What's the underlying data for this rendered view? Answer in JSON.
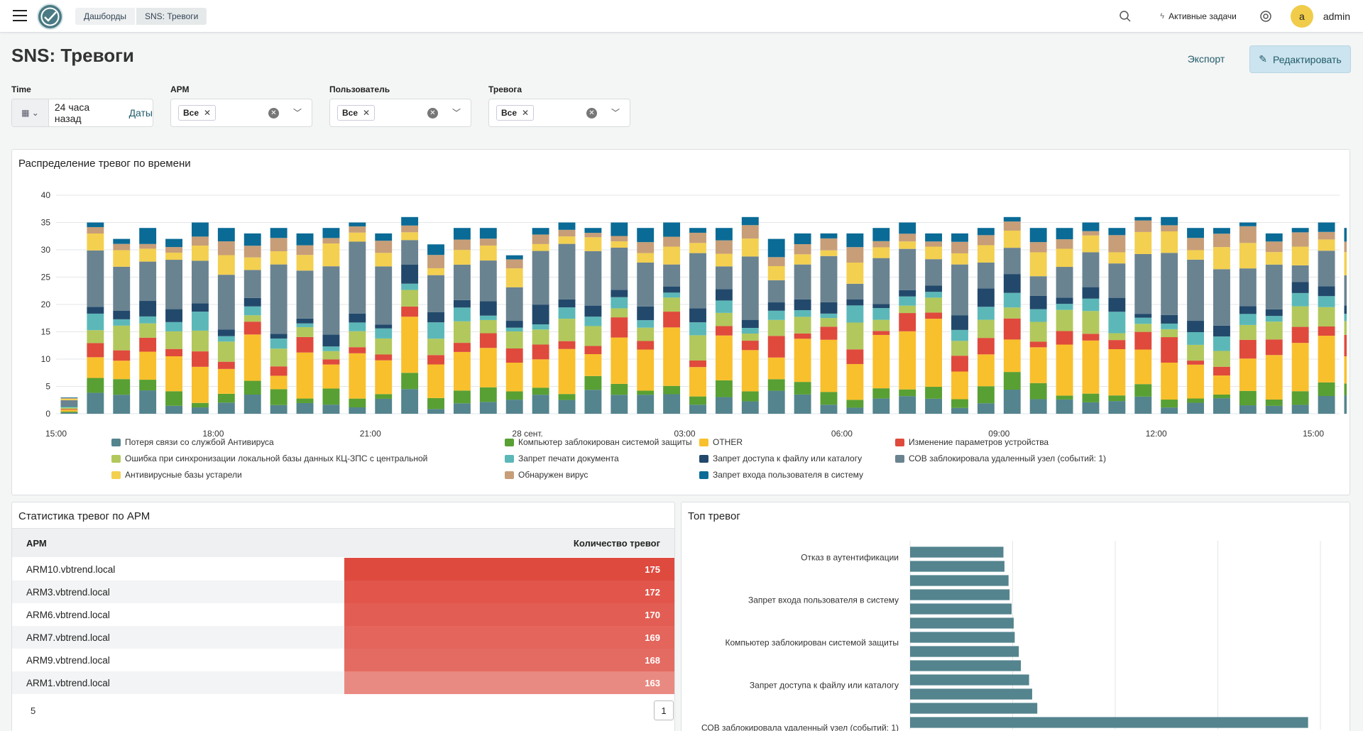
{
  "nav": {
    "breadcrumbs": [
      "Дашборды",
      "SNS: Тревоги"
    ],
    "tasks_label": "Активные задачи",
    "avatar_letter": "a",
    "username": "admin"
  },
  "page": {
    "title": "SNS: Тревоги",
    "export_label": "Экспорт",
    "edit_label": "Редактировать"
  },
  "filters": {
    "time": {
      "label": "Time",
      "value": "24 часа назад",
      "link": "Даты"
    },
    "arm": {
      "label": "АРМ",
      "chip": "Все"
    },
    "user": {
      "label": "Пользователь",
      "chip": "Все"
    },
    "alarm": {
      "label": "Тревога",
      "chip": "Все"
    }
  },
  "timeline_panel": {
    "title": "Распределение тревог по времени",
    "chart_data": {
      "type": "bar",
      "stacked": true,
      "y_ticks": [
        "0",
        "5",
        "10",
        "15",
        "20",
        "25",
        "30",
        "35",
        "40"
      ],
      "ylim": [
        0,
        40
      ],
      "x_tick_labels": [
        "15:00",
        "18:00",
        "21:00",
        "28 сент.",
        "03:00",
        "06:00",
        "09:00",
        "12:00",
        "15:00"
      ],
      "x_tick_hours": [
        0,
        3,
        6,
        9,
        12,
        15,
        18,
        21,
        24
      ],
      "bucket_hours": 0.5,
      "grid": true,
      "legend_position": "bottom",
      "series": [
        {
          "name": "Потеря связи со службой  Антивируса",
          "color": "#54848e"
        },
        {
          "name": "Компьютер заблокирован системой защиты",
          "color": "#58a033"
        },
        {
          "name": "OTHER",
          "color": "#f9c02d"
        },
        {
          "name": "Изменение параметров устройства",
          "color": "#df4a3c"
        },
        {
          "name": "Ошибка при синхронизации локальной базы данных КЦ-ЗПС с центральной",
          "color": "#b2c85c"
        },
        {
          "name": "Запрет печати документа",
          "color": "#5cb8b8"
        },
        {
          "name": "Запрет доступа к файлу или каталогу",
          "color": "#22496b"
        },
        {
          "name": "СОВ заблокировала удаленный узел (событий: 1)",
          "color": "#6a8391"
        },
        {
          "name": "Антивирусные базы устарели",
          "color": "#f3d050"
        },
        {
          "name": "Обнаружен вирус",
          "color": "#c79e78"
        },
        {
          "name": "Запрет входа пользователя в систему",
          "color": "#0a6b96"
        }
      ],
      "totals": [
        3,
        35,
        32,
        34,
        32,
        35,
        34,
        33,
        34,
        33,
        34,
        35,
        33,
        36,
        31,
        34,
        34,
        29,
        34,
        35,
        34,
        35,
        34,
        35,
        34,
        34,
        36,
        32,
        33,
        33,
        33,
        34,
        35,
        33,
        33,
        34,
        36,
        34,
        34,
        35,
        34,
        36,
        36,
        34,
        34,
        35,
        33,
        34,
        35,
        34,
        33,
        36,
        34,
        33,
        33,
        29
      ]
    }
  },
  "table_panel": {
    "title": "Статистика тревог по АРМ",
    "columns": [
      "АРМ",
      "Количество тревог"
    ],
    "rows": [
      {
        "name": "ARM10.vbtrend.local",
        "value": "175",
        "color": "#df4a3f"
      },
      {
        "name": "ARM3.vbtrend.local",
        "value": "172",
        "color": "#e1554b"
      },
      {
        "name": "ARM6.vbtrend.local",
        "value": "170",
        "color": "#e25e54"
      },
      {
        "name": "ARM7.vbtrend.local",
        "value": "169",
        "color": "#e3655c"
      },
      {
        "name": "ARM9.vbtrend.local",
        "value": "168",
        "color": "#e46b62"
      },
      {
        "name": "ARM1.vbtrend.local",
        "value": "163",
        "color": "#e98a82"
      }
    ],
    "page_size": "5",
    "page": "1"
  },
  "top_panel": {
    "title": "Топ тревог",
    "chart_data": {
      "type": "bar",
      "orientation": "horizontal",
      "category_labels": [
        "Отказ в аутентификации",
        "Запрет входа пользователя в систему",
        "Компьютер заблокирован системой защиты",
        "Запрет доступа к файлу или каталогу",
        "СОВ заблокировала удаленный узел (событий: 1)"
      ],
      "values": [
        91,
        92,
        96,
        97,
        99,
        101,
        102,
        106,
        108,
        116,
        119,
        124,
        388
      ],
      "x_ticks": [
        "0",
        "100",
        "200",
        "300",
        "400"
      ],
      "xlim": [
        0,
        400
      ],
      "color": "#54848e"
    }
  }
}
